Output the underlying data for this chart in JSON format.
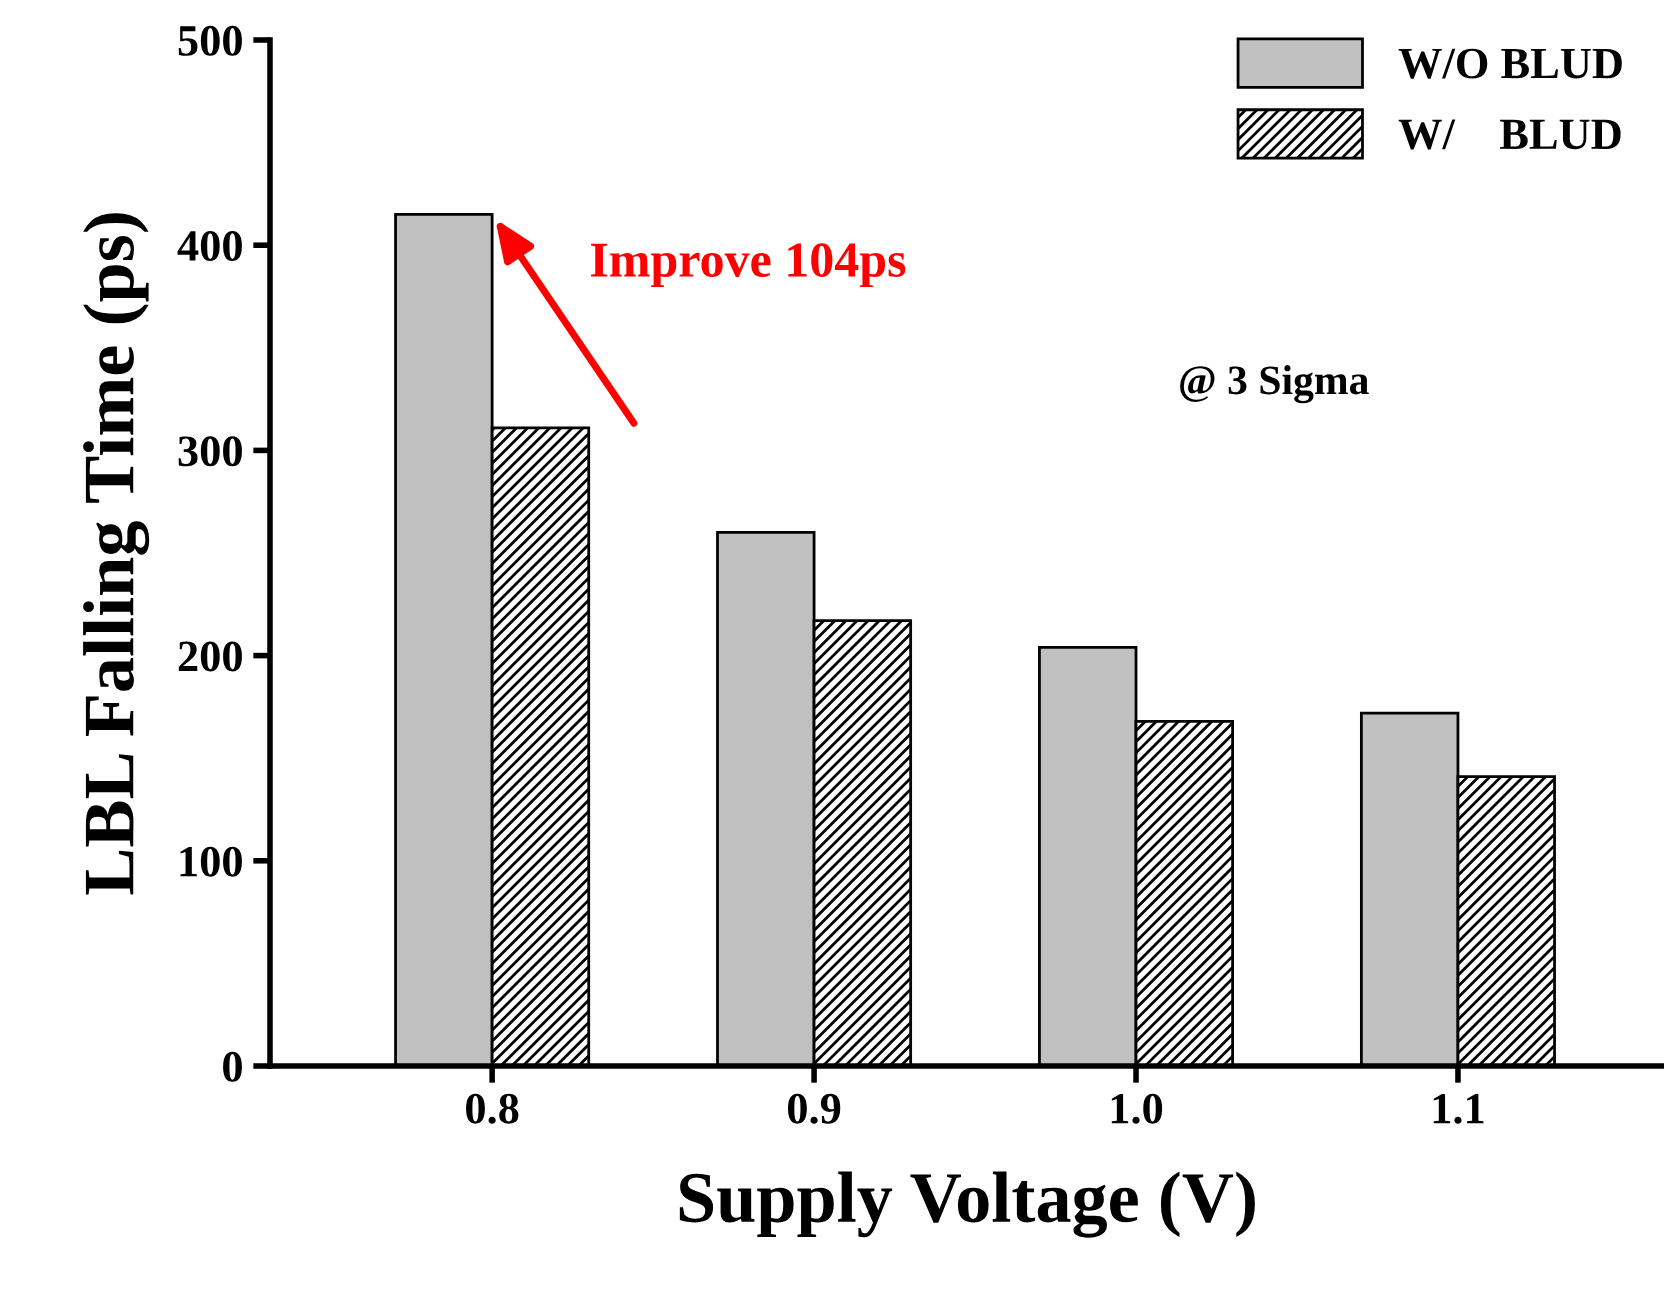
{
  "chart_data": {
    "type": "bar",
    "xlabel": "Supply Voltage (V)",
    "ylabel": "LBL Falling Time (ps)",
    "categories": [
      "0.8",
      "0.9",
      "1.0",
      "1.1"
    ],
    "series": [
      {
        "name": "W/O BLUD",
        "color": "#c0c0c0",
        "values": [
          415,
          260,
          204,
          172
        ]
      },
      {
        "name": "W/    BLUD",
        "color": "#000000",
        "values": [
          311,
          217,
          168,
          141
        ]
      }
    ],
    "ylim": [
      0,
      500
    ],
    "yticks": [
      0,
      100,
      200,
      300,
      400,
      500
    ],
    "grid": false,
    "legend": "top right",
    "annotations": [
      {
        "text": "Improve 104ps",
        "x": "0.8",
        "y": 415
      },
      "@ 3 Sigma"
    ]
  }
}
